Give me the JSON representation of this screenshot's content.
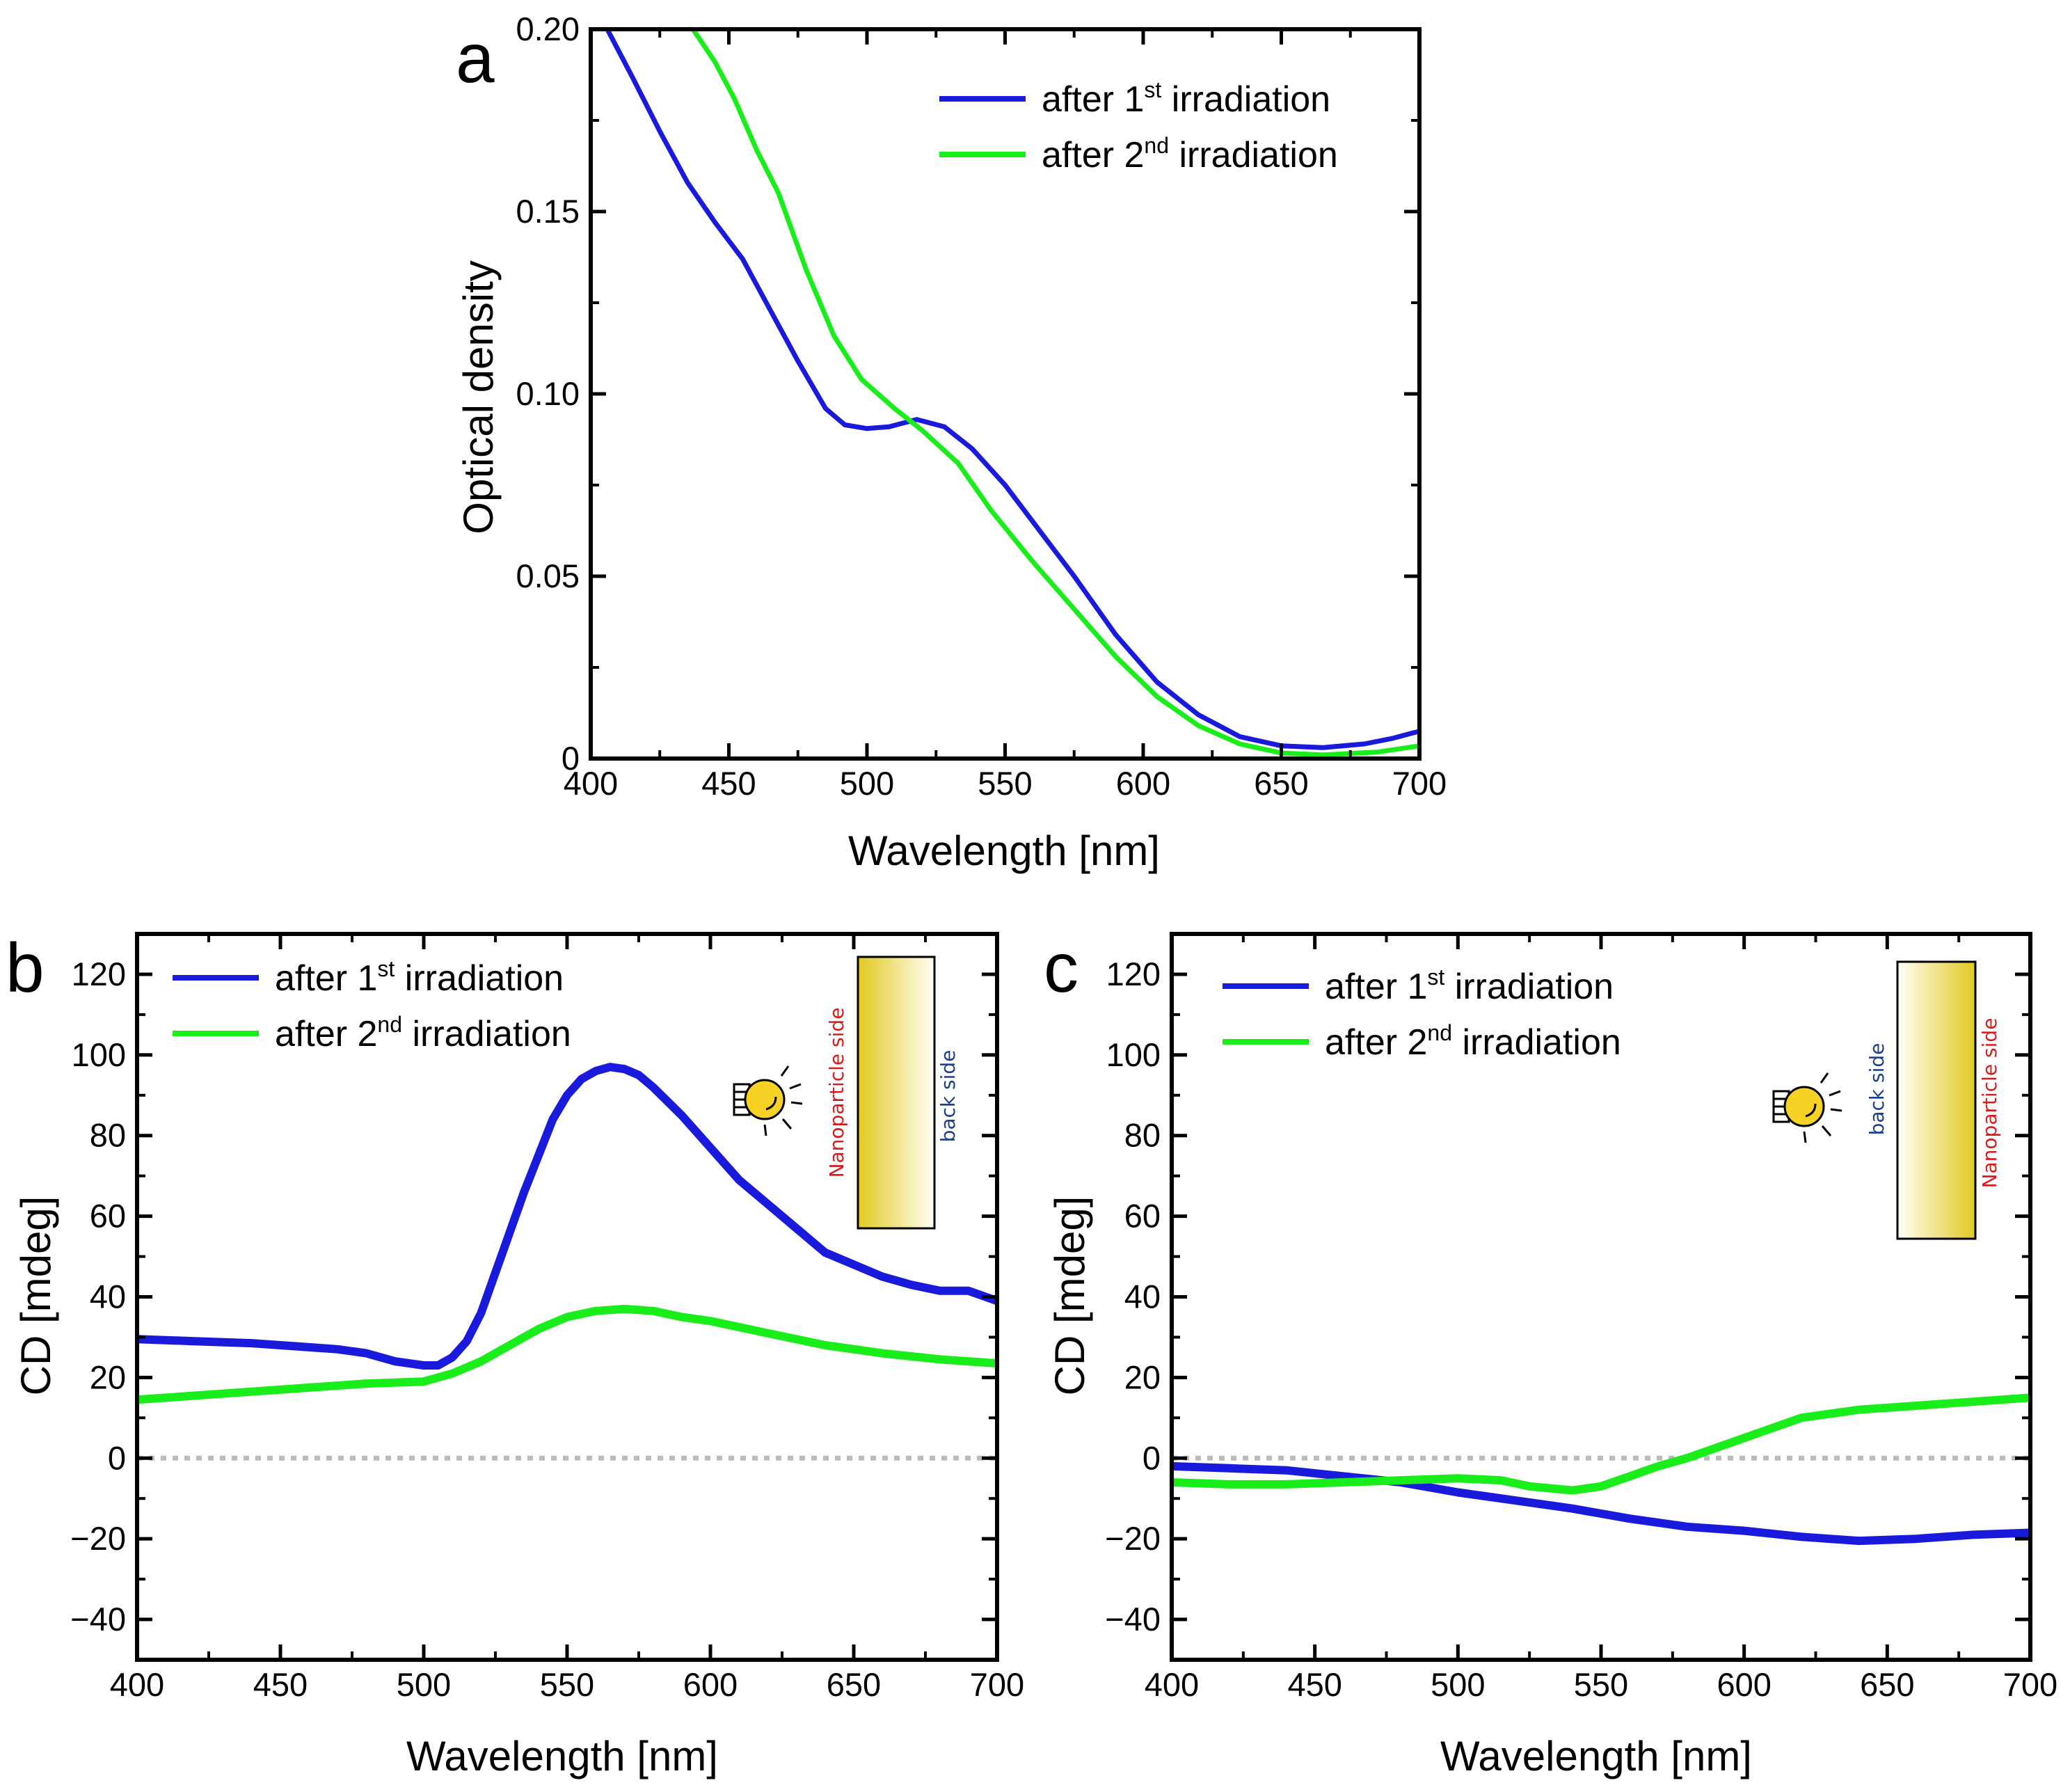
{
  "colors": {
    "series1": "#1a1adc",
    "series2": "#1aee1a",
    "zero_line": "#bbbbbb",
    "nanoparticle_label": "#d81b1b",
    "back_label": "#1a3e8c",
    "bulb": "#f5d224",
    "film": "#e5cd2a"
  },
  "legend": {
    "series1": {
      "prefix": "after 1",
      "sup": "st",
      "suffix": " irradiation"
    },
    "series2": {
      "prefix": "after 2",
      "sup": "nd",
      "suffix": " irradiation"
    }
  },
  "chart_data": [
    {
      "id": "a",
      "type": "line",
      "panel_label": "a",
      "xlabel": "Wavelength [nm]",
      "ylabel": "Optical density",
      "xlim": [
        400,
        700
      ],
      "ylim": [
        0,
        0.2
      ],
      "xticks": [
        400,
        450,
        500,
        550,
        600,
        650,
        700
      ],
      "yticks": [
        0,
        0.05,
        0.1,
        0.15,
        0.2
      ],
      "ytick_labels": [
        "0",
        "0.05",
        "0.10",
        "0.15",
        "0.20"
      ],
      "legend_position": "top-right",
      "zero_line": false,
      "series": [
        {
          "name": "after 1st irradiation",
          "color_key": "series1",
          "points": [
            [
              406,
              0.2
            ],
            [
              415,
              0.187
            ],
            [
              425,
              0.172
            ],
            [
              435,
              0.158
            ],
            [
              445,
              0.147
            ],
            [
              455,
              0.137
            ],
            [
              465,
              0.123
            ],
            [
              475,
              0.109
            ],
            [
              485,
              0.096
            ],
            [
              492,
              0.0915
            ],
            [
              500,
              0.0905
            ],
            [
              508,
              0.091
            ],
            [
              518,
              0.093
            ],
            [
              528,
              0.091
            ],
            [
              538,
              0.085
            ],
            [
              550,
              0.075
            ],
            [
              562,
              0.063
            ],
            [
              575,
              0.05
            ],
            [
              590,
              0.034
            ],
            [
              605,
              0.021
            ],
            [
              620,
              0.012
            ],
            [
              635,
              0.006
            ],
            [
              650,
              0.0035
            ],
            [
              665,
              0.003
            ],
            [
              680,
              0.004
            ],
            [
              690,
              0.0055
            ],
            [
              700,
              0.0075
            ]
          ]
        },
        {
          "name": "after 2nd irradiation",
          "color_key": "series2",
          "points": [
            [
              437,
              0.2
            ],
            [
              445,
              0.191
            ],
            [
              452,
              0.181
            ],
            [
              460,
              0.167
            ],
            [
              468,
              0.155
            ],
            [
              478,
              0.134
            ],
            [
              488,
              0.116
            ],
            [
              498,
              0.104
            ],
            [
              510,
              0.096
            ],
            [
              520,
              0.09
            ],
            [
              533,
              0.081
            ],
            [
              545,
              0.068
            ],
            [
              560,
              0.054
            ],
            [
              575,
              0.041
            ],
            [
              590,
              0.028
            ],
            [
              605,
              0.017
            ],
            [
              620,
              0.009
            ],
            [
              635,
              0.004
            ],
            [
              650,
              0.0015
            ],
            [
              665,
              0.001
            ],
            [
              685,
              0.0018
            ],
            [
              700,
              0.0035
            ]
          ]
        }
      ]
    },
    {
      "id": "b",
      "type": "line",
      "panel_label": "b",
      "xlabel": "Wavelength [nm]",
      "ylabel": "CD [mdeg]",
      "xlim": [
        400,
        700
      ],
      "ylim": [
        -50,
        130
      ],
      "xticks": [
        400,
        450,
        500,
        550,
        600,
        650,
        700
      ],
      "yticks": [
        -40,
        -20,
        0,
        20,
        40,
        60,
        80,
        100,
        120
      ],
      "ytick_labels": [
        "−40",
        "−20",
        "0",
        "20",
        "40",
        "60",
        "80",
        "100",
        "120"
      ],
      "legend_position": "top-left",
      "zero_line": true,
      "inset": {
        "nanoparticle_label": "Nanoparticle side",
        "back_label": "back side",
        "bulb_facing": "nanoparticle side"
      },
      "series": [
        {
          "name": "after 1st irradiation",
          "color_key": "series1",
          "points": [
            [
              400,
              29.5
            ],
            [
              420,
              29
            ],
            [
              440,
              28.5
            ],
            [
              460,
              27.5
            ],
            [
              470,
              27
            ],
            [
              480,
              26
            ],
            [
              490,
              24
            ],
            [
              500,
              23
            ],
            [
              505,
              23
            ],
            [
              510,
              25
            ],
            [
              515,
              29
            ],
            [
              520,
              36
            ],
            [
              525,
              46
            ],
            [
              530,
              56
            ],
            [
              535,
              66
            ],
            [
              540,
              75
            ],
            [
              545,
              84
            ],
            [
              550,
              90
            ],
            [
              555,
              94
            ],
            [
              560,
              96
            ],
            [
              565,
              97
            ],
            [
              570,
              96.5
            ],
            [
              575,
              95
            ],
            [
              580,
              92
            ],
            [
              590,
              85
            ],
            [
              600,
              77
            ],
            [
              610,
              69
            ],
            [
              620,
              63
            ],
            [
              630,
              57
            ],
            [
              640,
              51
            ],
            [
              650,
              48
            ],
            [
              660,
              45
            ],
            [
              670,
              43
            ],
            [
              680,
              41.5
            ],
            [
              690,
              41.5
            ],
            [
              700,
              39
            ]
          ]
        },
        {
          "name": "after 2nd irradiation",
          "color_key": "series2",
          "points": [
            [
              400,
              14.5
            ],
            [
              420,
              15.5
            ],
            [
              440,
              16.5
            ],
            [
              460,
              17.5
            ],
            [
              480,
              18.5
            ],
            [
              500,
              19
            ],
            [
              510,
              21
            ],
            [
              520,
              24
            ],
            [
              530,
              28
            ],
            [
              540,
              32
            ],
            [
              550,
              35
            ],
            [
              560,
              36.5
            ],
            [
              570,
              37
            ],
            [
              580,
              36.5
            ],
            [
              590,
              35
            ],
            [
              600,
              34
            ],
            [
              620,
              31
            ],
            [
              640,
              28
            ],
            [
              660,
              26
            ],
            [
              680,
              24.5
            ],
            [
              700,
              23.5
            ]
          ]
        }
      ]
    },
    {
      "id": "c",
      "type": "line",
      "panel_label": "c",
      "xlabel": "Wavelength [nm]",
      "ylabel": "CD [mdeg]",
      "xlim": [
        400,
        700
      ],
      "ylim": [
        -50,
        130
      ],
      "xticks": [
        400,
        450,
        500,
        550,
        600,
        650,
        700
      ],
      "yticks": [
        -40,
        -20,
        0,
        20,
        40,
        60,
        80,
        100,
        120
      ],
      "ytick_labels": [
        "−40",
        "−20",
        "0",
        "20",
        "40",
        "60",
        "80",
        "100",
        "120"
      ],
      "legend_position": "top-left",
      "zero_line": true,
      "inset": {
        "nanoparticle_label": "Nanoparticle side",
        "back_label": "back side",
        "bulb_facing": "back side"
      },
      "series": [
        {
          "name": "after 1st irradiation",
          "color_key": "series1",
          "points": [
            [
              400,
              -2
            ],
            [
              420,
              -2.5
            ],
            [
              440,
              -3
            ],
            [
              460,
              -4.5
            ],
            [
              480,
              -6
            ],
            [
              500,
              -8.5
            ],
            [
              520,
              -10.5
            ],
            [
              540,
              -12.5
            ],
            [
              560,
              -15
            ],
            [
              580,
              -17
            ],
            [
              600,
              -18
            ],
            [
              620,
              -19.5
            ],
            [
              640,
              -20.5
            ],
            [
              660,
              -20
            ],
            [
              680,
              -19
            ],
            [
              700,
              -18.5
            ]
          ]
        },
        {
          "name": "after 2nd irradiation",
          "color_key": "series2",
          "points": [
            [
              400,
              -6
            ],
            [
              420,
              -6.5
            ],
            [
              440,
              -6.5
            ],
            [
              460,
              -6
            ],
            [
              480,
              -5.5
            ],
            [
              500,
              -5
            ],
            [
              515,
              -5.5
            ],
            [
              525,
              -7
            ],
            [
              540,
              -8
            ],
            [
              550,
              -7
            ],
            [
              560,
              -4.5
            ],
            [
              570,
              -2
            ],
            [
              580,
              0
            ],
            [
              590,
              2.5
            ],
            [
              600,
              5
            ],
            [
              610,
              7.5
            ],
            [
              620,
              10
            ],
            [
              640,
              12
            ],
            [
              660,
              13
            ],
            [
              680,
              14
            ],
            [
              700,
              15
            ]
          ]
        }
      ]
    }
  ]
}
